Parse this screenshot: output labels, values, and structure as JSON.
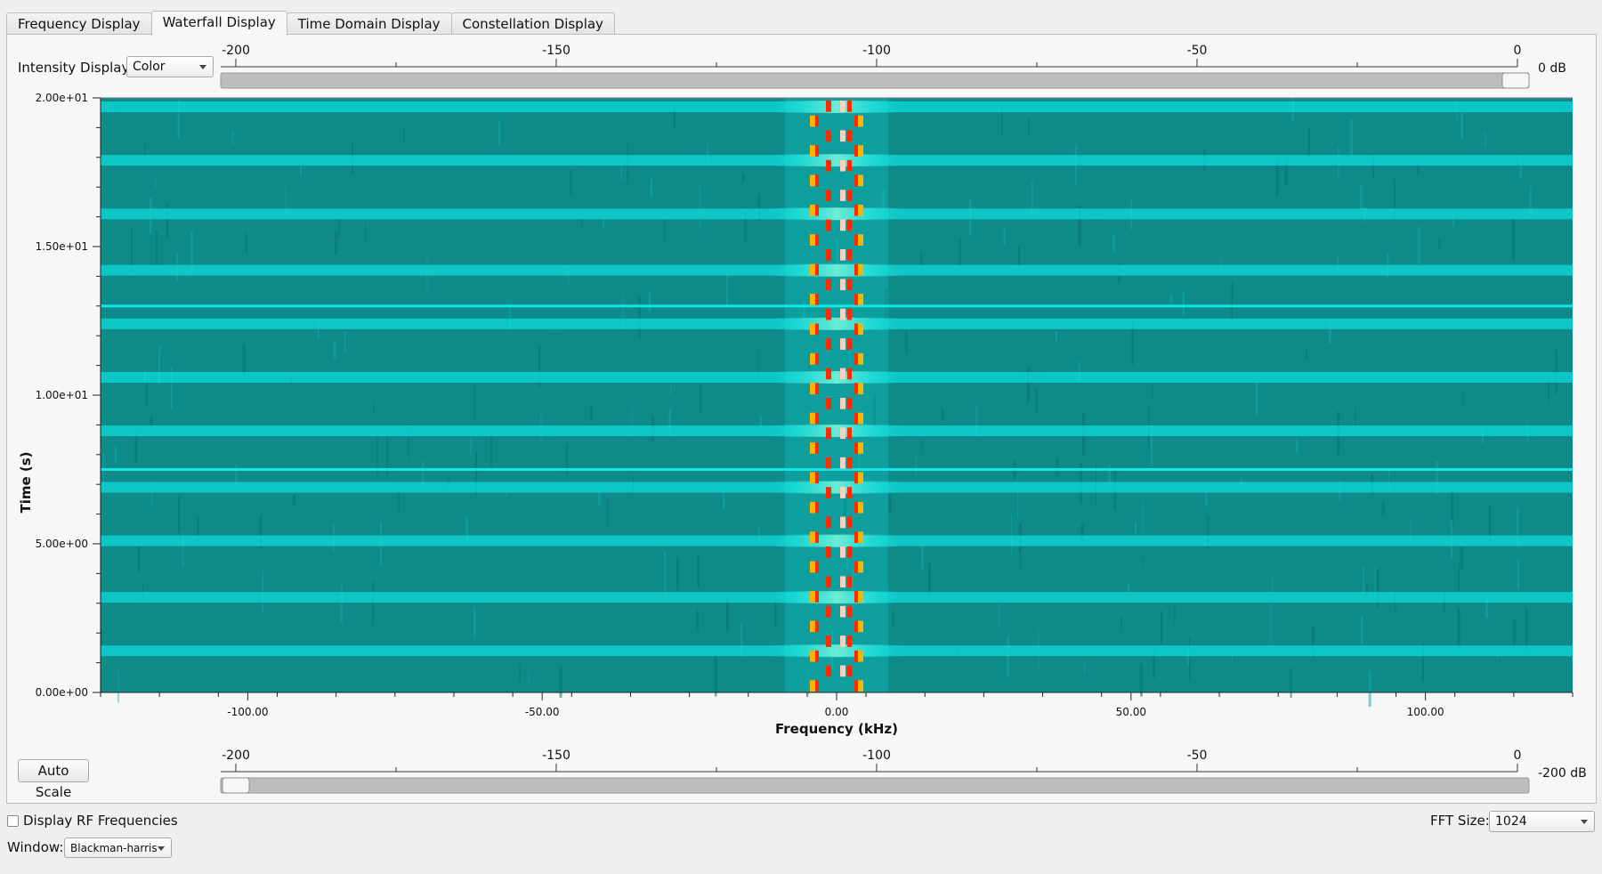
{
  "tabs": [
    {
      "label": "Frequency Display",
      "active": false
    },
    {
      "label": "Waterfall Display",
      "active": true
    },
    {
      "label": "Time Domain Display",
      "active": false
    },
    {
      "label": "Constellation Display",
      "active": false
    }
  ],
  "intensity": {
    "label": "Intensity Display:",
    "value": "Color"
  },
  "max_slider": {
    "ticks": [
      "-200",
      "-150",
      "-100",
      "-50",
      "0"
    ],
    "value_label": "0 dB",
    "value_db": 0,
    "range": [
      -200,
      0
    ]
  },
  "min_slider": {
    "ticks": [
      "-200",
      "-150",
      "-100",
      "-50",
      "0"
    ],
    "value_label": "-200 dB",
    "value_db": -200,
    "range": [
      -200,
      0
    ]
  },
  "auto_scale_label": "Auto Scale",
  "display_rf": {
    "label": "Display RF Frequencies",
    "checked": false
  },
  "fft_size": {
    "label": "FFT Size:",
    "value": "1024"
  },
  "window": {
    "label": "Window:",
    "value": "Blackman-harris"
  },
  "colors": {
    "background": "#0e8a89",
    "bright": "#10e6e6",
    "band_hot": "#ff2a00",
    "band_warm": "#ffb400",
    "window_bg": "#efefef"
  },
  "chart_data": {
    "type": "heatmap",
    "xlabel": "Frequency (kHz)",
    "ylabel": "Time (s)",
    "xlim": [
      -125,
      125
    ],
    "ylim": [
      0,
      20
    ],
    "x_ticks": [
      -100,
      -50,
      0,
      50,
      100
    ],
    "x_tick_labels": [
      "-100.00",
      "-50.00",
      "0.00",
      "50.00",
      "100.00"
    ],
    "y_ticks": [
      0,
      5,
      10,
      15,
      20
    ],
    "y_tick_labels": [
      "0.00e+00",
      "5.00e+00",
      "1.00e+01",
      "1.50e+01",
      "2.00e+01"
    ],
    "signal_band_khz": [
      -5,
      5
    ],
    "bright_rows_s": [
      19.7,
      17.9,
      16.1,
      14.2,
      12.4,
      10.6,
      8.8,
      6.9,
      5.1,
      3.2,
      1.4
    ],
    "thin_lines_s": [
      13.0,
      7.5
    ]
  }
}
